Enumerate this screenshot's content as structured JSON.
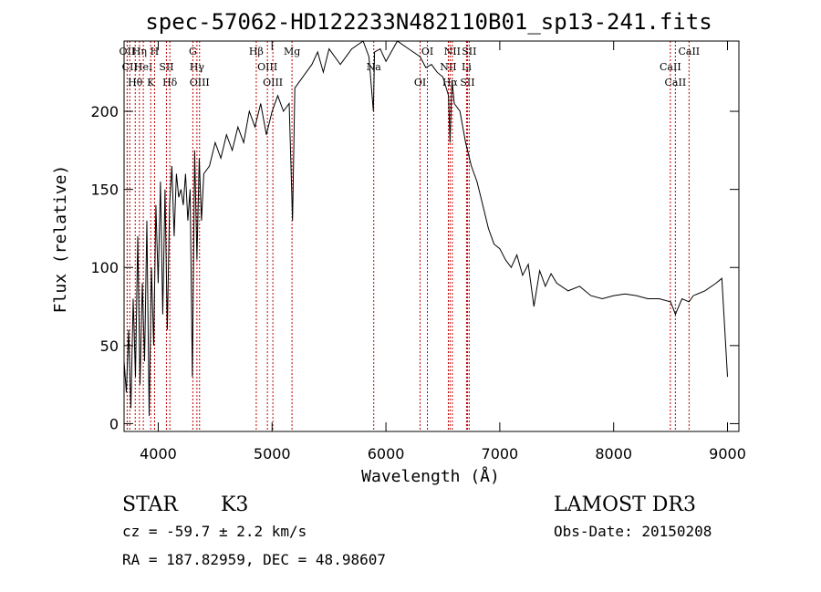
{
  "chart_data": {
    "type": "line",
    "title": "spec-57062-HD122233N482110B01_sp13-241.fits",
    "xlabel": "Wavelength (Å)",
    "ylabel": "Flux (relative)",
    "xlim": [
      3700,
      9100
    ],
    "ylim": [
      -5,
      245
    ],
    "x_ticks": [
      4000,
      5000,
      6000,
      7000,
      8000,
      9000
    ],
    "y_ticks": [
      0,
      50,
      100,
      150,
      200
    ],
    "grid": false,
    "series": [
      {
        "color": "#000000",
        "x": [
          3700,
          3720,
          3740,
          3760,
          3780,
          3800,
          3820,
          3840,
          3860,
          3880,
          3900,
          3920,
          3940,
          3960,
          3980,
          4000,
          4020,
          4040,
          4060,
          4080,
          4100,
          4120,
          4140,
          4160,
          4180,
          4200,
          4220,
          4240,
          4260,
          4280,
          4300,
          4320,
          4340,
          4360,
          4380,
          4400,
          4450,
          4500,
          4550,
          4600,
          4650,
          4700,
          4750,
          4800,
          4850,
          4900,
          4950,
          5000,
          5050,
          5100,
          5150,
          5180,
          5200,
          5250,
          5300,
          5350,
          5400,
          5450,
          5500,
          5600,
          5700,
          5800,
          5850,
          5890,
          5900,
          5950,
          6000,
          6100,
          6200,
          6300,
          6350,
          6400,
          6450,
          6500,
          6550,
          6563,
          6580,
          6600,
          6650,
          6700,
          6750,
          6800,
          6850,
          6900,
          6950,
          7000,
          7050,
          7100,
          7150,
          7200,
          7250,
          7300,
          7350,
          7400,
          7450,
          7500,
          7600,
          7700,
          7800,
          7900,
          8000,
          8100,
          8200,
          8300,
          8400,
          8500,
          8542,
          8600,
          8662,
          8700,
          8800,
          8900,
          8950,
          9000
        ],
        "values": [
          40,
          20,
          60,
          10,
          80,
          30,
          120,
          25,
          90,
          40,
          130,
          5,
          100,
          50,
          140,
          90,
          155,
          70,
          150,
          60,
          140,
          165,
          120,
          160,
          145,
          150,
          140,
          160,
          130,
          150,
          30,
          175,
          105,
          170,
          130,
          160,
          165,
          180,
          170,
          185,
          175,
          190,
          180,
          200,
          190,
          205,
          185,
          200,
          210,
          200,
          205,
          130,
          215,
          220,
          225,
          230,
          238,
          225,
          240,
          230,
          240,
          245,
          235,
          200,
          238,
          240,
          232,
          245,
          240,
          235,
          228,
          230,
          225,
          222,
          210,
          180,
          220,
          205,
          200,
          180,
          165,
          155,
          140,
          125,
          115,
          112,
          105,
          100,
          108,
          95,
          102,
          75,
          98,
          88,
          96,
          90,
          85,
          88,
          82,
          80,
          82,
          83,
          82,
          80,
          80,
          78,
          70,
          80,
          78,
          82,
          85,
          90,
          93,
          30
        ]
      }
    ],
    "line_markers": [
      {
        "wl": 3727,
        "label": "OII"
      },
      {
        "wl": 3750,
        "label": "CII"
      },
      {
        "wl": 3798,
        "label": "Hθ"
      },
      {
        "wl": 3835,
        "label": "Hη"
      },
      {
        "wl": 3869,
        "label": "HeI"
      },
      {
        "wl": 3934,
        "label": "K"
      },
      {
        "wl": 3968,
        "label": "H"
      },
      {
        "wl": 4072,
        "label": "SII"
      },
      {
        "wl": 4102,
        "label": "Hδ"
      },
      {
        "wl": 4304,
        "label": "G"
      },
      {
        "wl": 4340,
        "label": "Hγ"
      },
      {
        "wl": 4363,
        "label": "OIII"
      },
      {
        "wl": 4861,
        "label": "Hβ"
      },
      {
        "wl": 4959,
        "label": "OIII"
      },
      {
        "wl": 5007,
        "label": "OIII"
      },
      {
        "wl": 5175,
        "label": "Mg"
      },
      {
        "wl": 5893,
        "label": "Na"
      },
      {
        "wl": 6300,
        "label": "OI"
      },
      {
        "wl": 6364,
        "label": "OI"
      },
      {
        "wl": 6548,
        "label": "NII"
      },
      {
        "wl": 6563,
        "label": "Hα"
      },
      {
        "wl": 6583,
        "label": "NII"
      },
      {
        "wl": 6708,
        "label": "Li"
      },
      {
        "wl": 6716,
        "label": "SII"
      },
      {
        "wl": 6731,
        "label": "SII"
      },
      {
        "wl": 8498,
        "label": "CaII"
      },
      {
        "wl": 8542,
        "label": "CaII"
      },
      {
        "wl": 8662,
        "label": "CaII"
      }
    ]
  },
  "info": {
    "class_label": "STAR",
    "subclass": "K3",
    "survey": "LAMOST DR3",
    "cz": "cz = -59.7 ± 2.2 km/s",
    "obs_date": "Obs-Date: 20150208",
    "coords": "RA = 187.82959, DEC =  48.98607"
  }
}
